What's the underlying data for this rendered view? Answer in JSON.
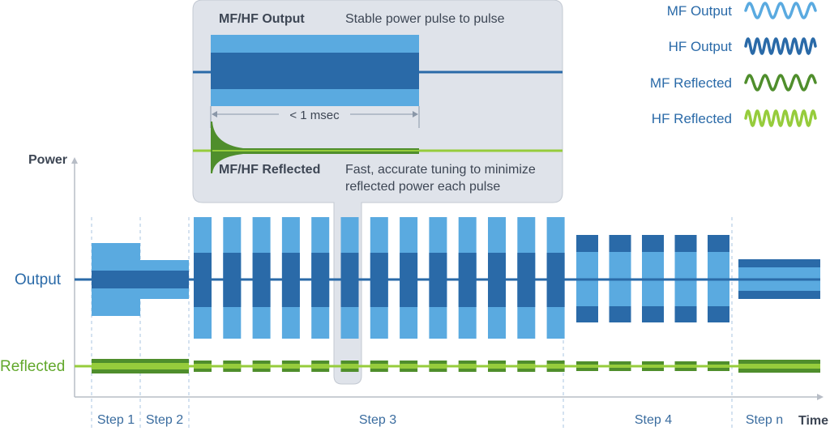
{
  "callout": {
    "output_title": "MF/HF Output",
    "output_desc": "Stable power pulse to pulse",
    "duration": "< 1 msec",
    "reflected_title": "MF/HF Reflected",
    "reflected_desc_line1": "Fast, accurate tuning to minimize",
    "reflected_desc_line2": "reflected power each pulse"
  },
  "legend": [
    {
      "label": "MF Output",
      "color": "#5aaae0",
      "kind": "mf"
    },
    {
      "label": "HF Output",
      "color": "#2a6aa8",
      "kind": "hf"
    },
    {
      "label": "MF Reflected",
      "color": "#4f8e2c",
      "kind": "mf"
    },
    {
      "label": "HF Reflected",
      "color": "#96cc3c",
      "kind": "hf"
    }
  ],
  "axes": {
    "y_label": "Power",
    "x_label": "Time",
    "output_label": "Output",
    "reflected_label": "Reflected"
  },
  "steps": [
    "Step 1",
    "Step 2",
    "Step 3",
    "Step 4",
    "Step n"
  ],
  "colors": {
    "mf_output": "#5aaae0",
    "hf_output": "#2a6aa8",
    "mf_reflected": "#4f8e2c",
    "hf_reflected": "#96cc3c",
    "callout_bg": "#dfe3ea"
  }
}
